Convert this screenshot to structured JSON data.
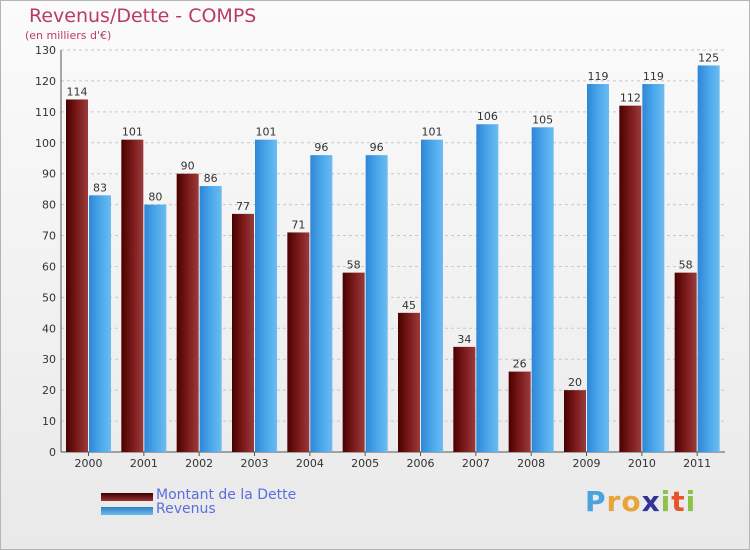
{
  "title": "Revenus/Dette - COMPS",
  "subtitle": "(en milliers d'€)",
  "logo": {
    "letters": [
      {
        "char": "P",
        "color": "#4aa3df"
      },
      {
        "char": "r",
        "color": "#e8a33a"
      },
      {
        "char": "o",
        "color": "#e8a33a"
      },
      {
        "char": "x",
        "color": "#333399"
      },
      {
        "char": "i",
        "color": "#8bc34a"
      },
      {
        "char": "t",
        "color": "#e8552b"
      },
      {
        "char": "i",
        "color": "#8bc34a"
      }
    ]
  },
  "colors": {
    "dette": "#7a1f1f",
    "revenus": "#4aa3e8",
    "title": "#b83a6b",
    "legend_text": "#5a6de0"
  },
  "chart_data": {
    "type": "bar",
    "title": "Revenus/Dette - COMPS",
    "subtitle": "(en milliers d'€)",
    "categories": [
      "2000",
      "2001",
      "2002",
      "2003",
      "2004",
      "2005",
      "2006",
      "2007",
      "2008",
      "2009",
      "2010",
      "2011"
    ],
    "series": [
      {
        "name": "Montant de la Dette",
        "values": [
          114,
          101,
          90,
          77,
          71,
          58,
          45,
          34,
          26,
          20,
          112,
          58
        ]
      },
      {
        "name": "Revenus",
        "values": [
          83,
          80,
          86,
          101,
          96,
          96,
          101,
          106,
          105,
          119,
          119,
          125
        ]
      }
    ],
    "ylim": [
      0,
      130
    ],
    "yticks": [
      0,
      10,
      20,
      30,
      40,
      50,
      60,
      70,
      80,
      90,
      100,
      110,
      120,
      130
    ],
    "grid": "horizontal-dashed",
    "legend_placement": "bottom-left"
  }
}
